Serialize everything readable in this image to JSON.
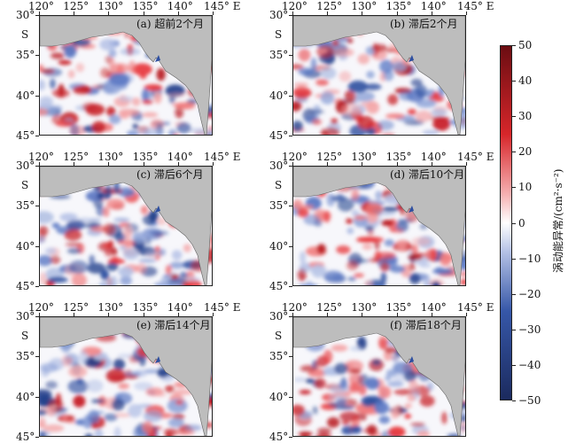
{
  "panels": [
    {
      "title": "(a) 超前2个月"
    },
    {
      "title": "(b) 滞后2个月"
    },
    {
      "title": "(c) 滞后6个月"
    },
    {
      "title": "(d) 滞后10个月"
    },
    {
      "title": "(e) 滞后14个月"
    },
    {
      "title": "(f) 滞后18个月"
    }
  ],
  "axes": {
    "x_ticks": [
      "120°",
      "125°",
      "130°",
      "135°",
      "140°",
      "145° E"
    ],
    "y_ticks": [
      "30°",
      "35°",
      "40°",
      "45°"
    ],
    "y_unit": "S"
  },
  "colorbar": {
    "title": "涡动能异常/(cm²·s⁻²)",
    "ticks": [
      "50",
      "40",
      "30",
      "20",
      "10",
      "0",
      "−10",
      "−20",
      "−30",
      "−40",
      "−50"
    ],
    "range": [
      -50,
      50
    ],
    "colors": {
      "max": "#6b0d12",
      "high": "#d7262a",
      "mid": "#ffffff",
      "low": "#3657a8",
      "min": "#1b2a5e"
    }
  },
  "colors": {
    "land": "#bdbdbd",
    "ocean_base": "#f7f7fb"
  }
}
